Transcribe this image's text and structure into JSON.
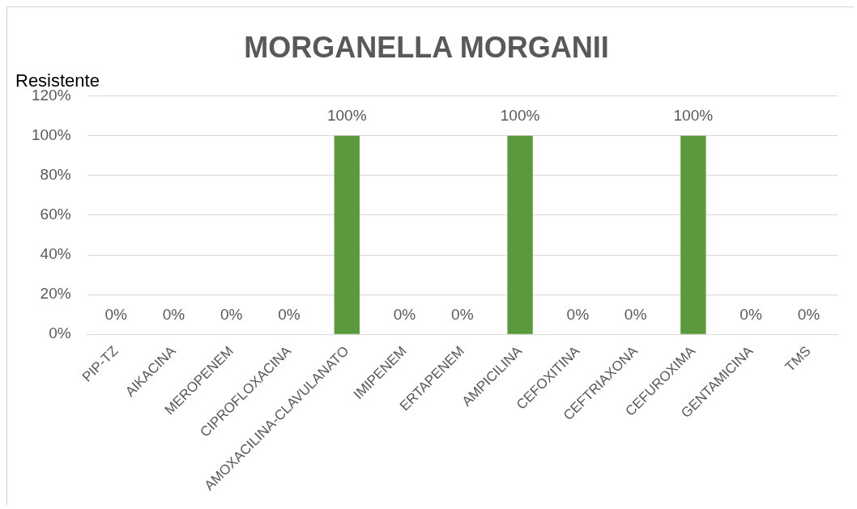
{
  "chart_data": {
    "type": "bar",
    "title": "MORGANELLA MORGANII",
    "subtitle": "Resistente",
    "categories": [
      "PIP-TZ",
      "AIKACINA",
      "MEROPENEM",
      "CIPROFLOXACINA",
      "AMOXACILINA-CLAVULANATO",
      "IMIPENEM",
      "ERTAPENEM",
      "AMPICILINA",
      "CEFOXITINA",
      "CEFTRIAXONA",
      "CEFUROXIMA",
      "GENTAMICINA",
      "TMS"
    ],
    "values": [
      0,
      0,
      0,
      0,
      100,
      0,
      0,
      100,
      0,
      0,
      100,
      0,
      0
    ],
    "value_labels": [
      "0%",
      "0%",
      "0%",
      "0%",
      "100%",
      "0%",
      "0%",
      "100%",
      "0%",
      "0%",
      "100%",
      "0%",
      "0%"
    ],
    "color": "#5b9a3c",
    "ylim": [
      0,
      120
    ],
    "yticks": [
      {
        "value": 0,
        "label": "0%"
      },
      {
        "value": 20,
        "label": "20%"
      },
      {
        "value": 40,
        "label": "40%"
      },
      {
        "value": 60,
        "label": "60%"
      },
      {
        "value": 80,
        "label": "80%"
      },
      {
        "value": 100,
        "label": "100%"
      },
      {
        "value": 120,
        "label": "120%"
      }
    ],
    "grid": "y"
  }
}
